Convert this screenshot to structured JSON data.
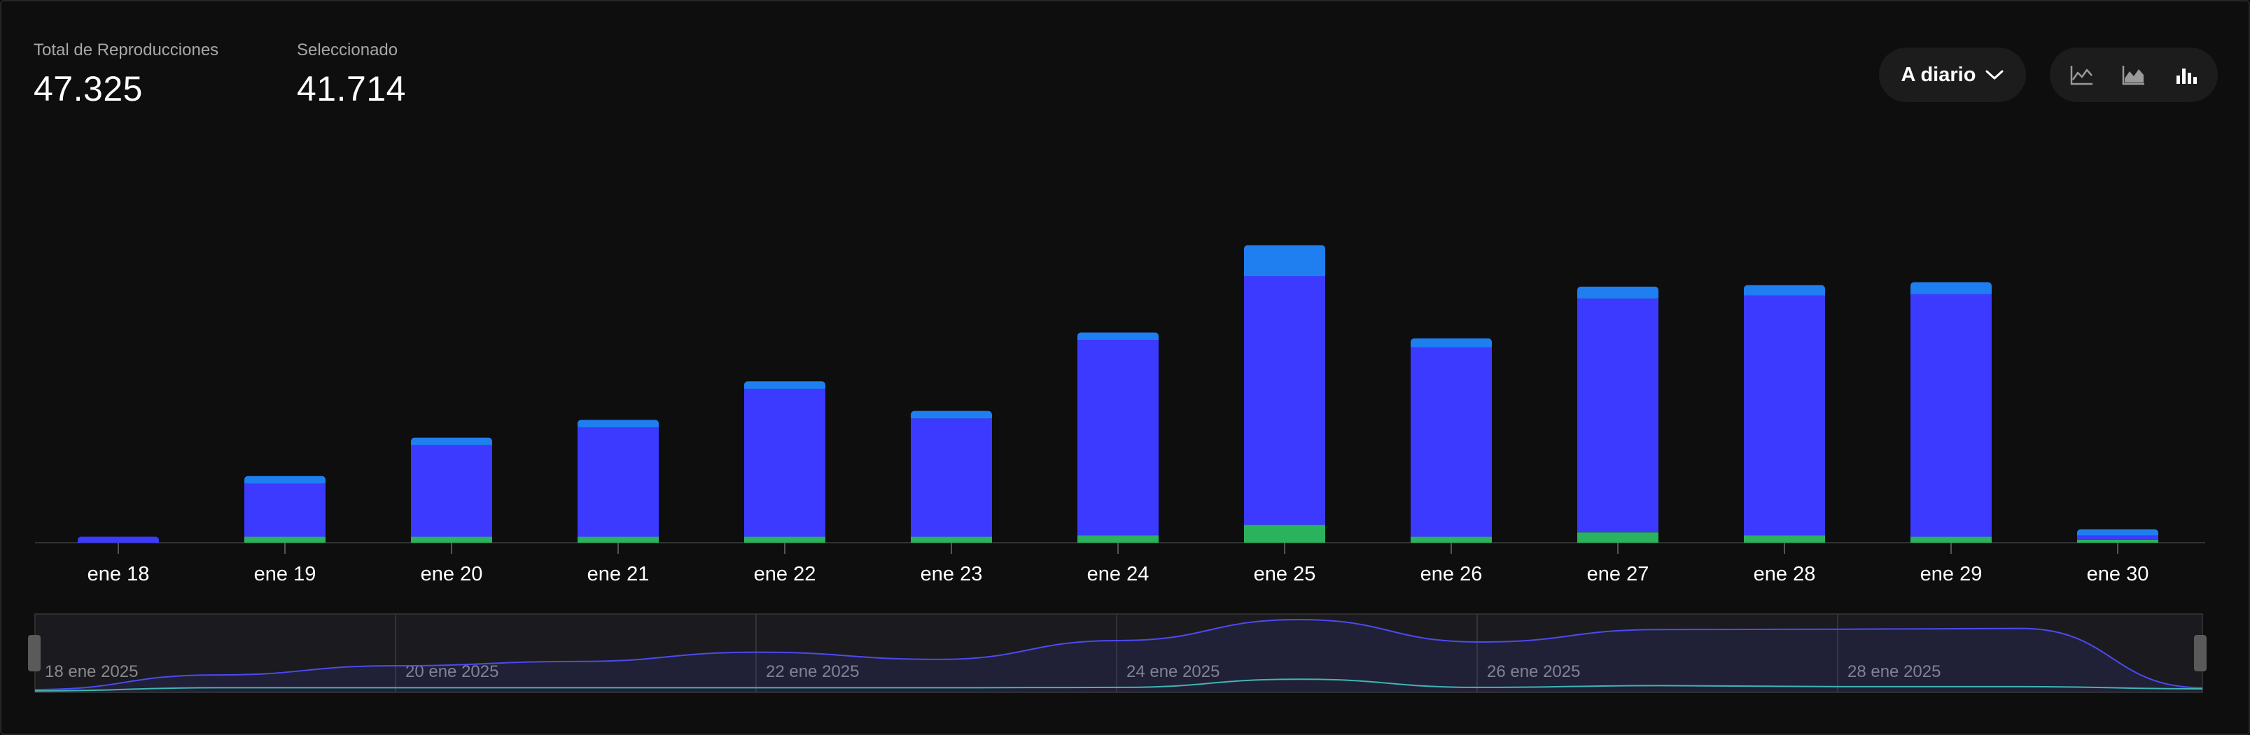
{
  "stats": {
    "total_label": "Total de Reproducciones",
    "total_value": "47.325",
    "selected_label": "Seleccionado",
    "selected_value": "41.714"
  },
  "controls": {
    "period_label": "A diario",
    "chart_types": [
      "line-chart-icon",
      "area-chart-icon",
      "bar-chart-icon"
    ],
    "active_type": "bar"
  },
  "colors": {
    "series_main": "#3d3aff",
    "series_top": "#1f7ef0",
    "series_bottom": "#2ab25c",
    "navigator_line": "#4d4af0",
    "navigator_line2": "#3fb6b0"
  },
  "chart_data": {
    "type": "bar",
    "stacked": true,
    "categories": [
      "ene 18",
      "ene 19",
      "ene 20",
      "ene 21",
      "ene 22",
      "ene 23",
      "ene 24",
      "ene 25",
      "ene 26",
      "ene 27",
      "ene 28",
      "ene 29",
      "ene 30"
    ],
    "series": [
      {
        "values": [
          0,
          20,
          20,
          20,
          20,
          20,
          25,
          60,
          20,
          35,
          25,
          20,
          10
        ]
      },
      {
        "values": [
          20,
          180,
          310,
          370,
          500,
          400,
          660,
          840,
          640,
          790,
          810,
          820,
          15
        ]
      },
      {
        "values": [
          0,
          25,
          25,
          25,
          25,
          25,
          25,
          105,
          30,
          40,
          35,
          40,
          20
        ]
      }
    ],
    "ylim": [
      0,
      1030
    ],
    "grid": false,
    "legend": "none",
    "navigator": {
      "labels": [
        "18 ene 2025",
        "20 ene 2025",
        "22 ene 2025",
        "24 ene 2025",
        "26 ene 2025",
        "28 ene 2025"
      ]
    }
  }
}
